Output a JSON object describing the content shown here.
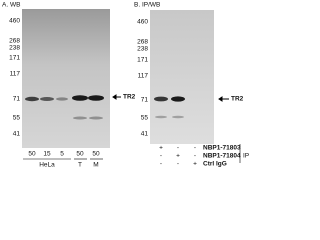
{
  "panel_a": {
    "title": "A. WB",
    "markers": [
      "460",
      "268",
      "238",
      "171",
      "117",
      "71",
      "55",
      "41"
    ],
    "target": "TR2",
    "lanes": [
      "50",
      "15",
      "5",
      "50",
      "50"
    ],
    "cell_lines": [
      "HeLa",
      "T",
      "M"
    ]
  },
  "panel_b": {
    "title": "B. IP/WB",
    "markers": [
      "460",
      "268",
      "238",
      "171",
      "117",
      "71",
      "55",
      "41"
    ],
    "target": "TR2",
    "rows": [
      {
        "symbols": [
          "+",
          "-",
          "-"
        ],
        "label": "NBP1-71803"
      },
      {
        "symbols": [
          "-",
          "+",
          "-"
        ],
        "label": "NBP1-71804"
      },
      {
        "symbols": [
          "-",
          "-",
          "+"
        ],
        "label": "Ctrl IgG"
      }
    ],
    "ip_label": "IP"
  }
}
